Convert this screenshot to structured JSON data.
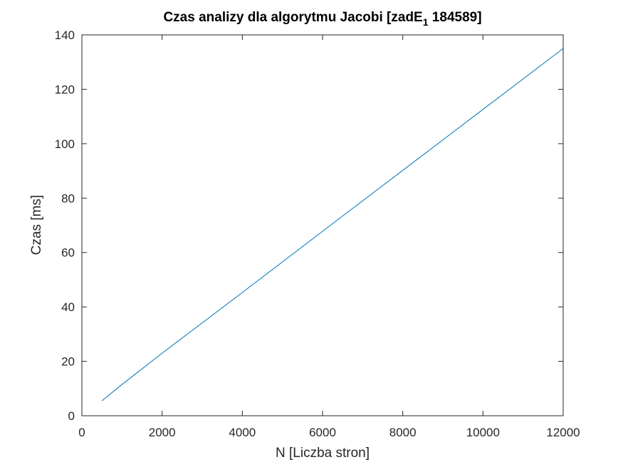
{
  "chart_data": {
    "type": "line",
    "title_main": "Czas analizy dla algorytmu Jacobi [zadE",
    "title_sub": "1",
    "title_tail": " 184589]",
    "xlabel": "N [Liczba stron]",
    "ylabel": "Czas [ms]",
    "xlim": [
      0,
      12000
    ],
    "ylim": [
      0,
      140
    ],
    "xticks": [
      0,
      2000,
      4000,
      6000,
      8000,
      10000,
      12000
    ],
    "yticks": [
      0,
      20,
      40,
      60,
      80,
      100,
      120,
      140
    ],
    "grid": false,
    "x": [
      500,
      1000,
      2000,
      4000,
      6000,
      8000,
      10000,
      12000
    ],
    "y": [
      5.5,
      11.5,
      23,
      45.3,
      67.8,
      90.2,
      112.6,
      135
    ],
    "line_color": "#0072BD"
  }
}
